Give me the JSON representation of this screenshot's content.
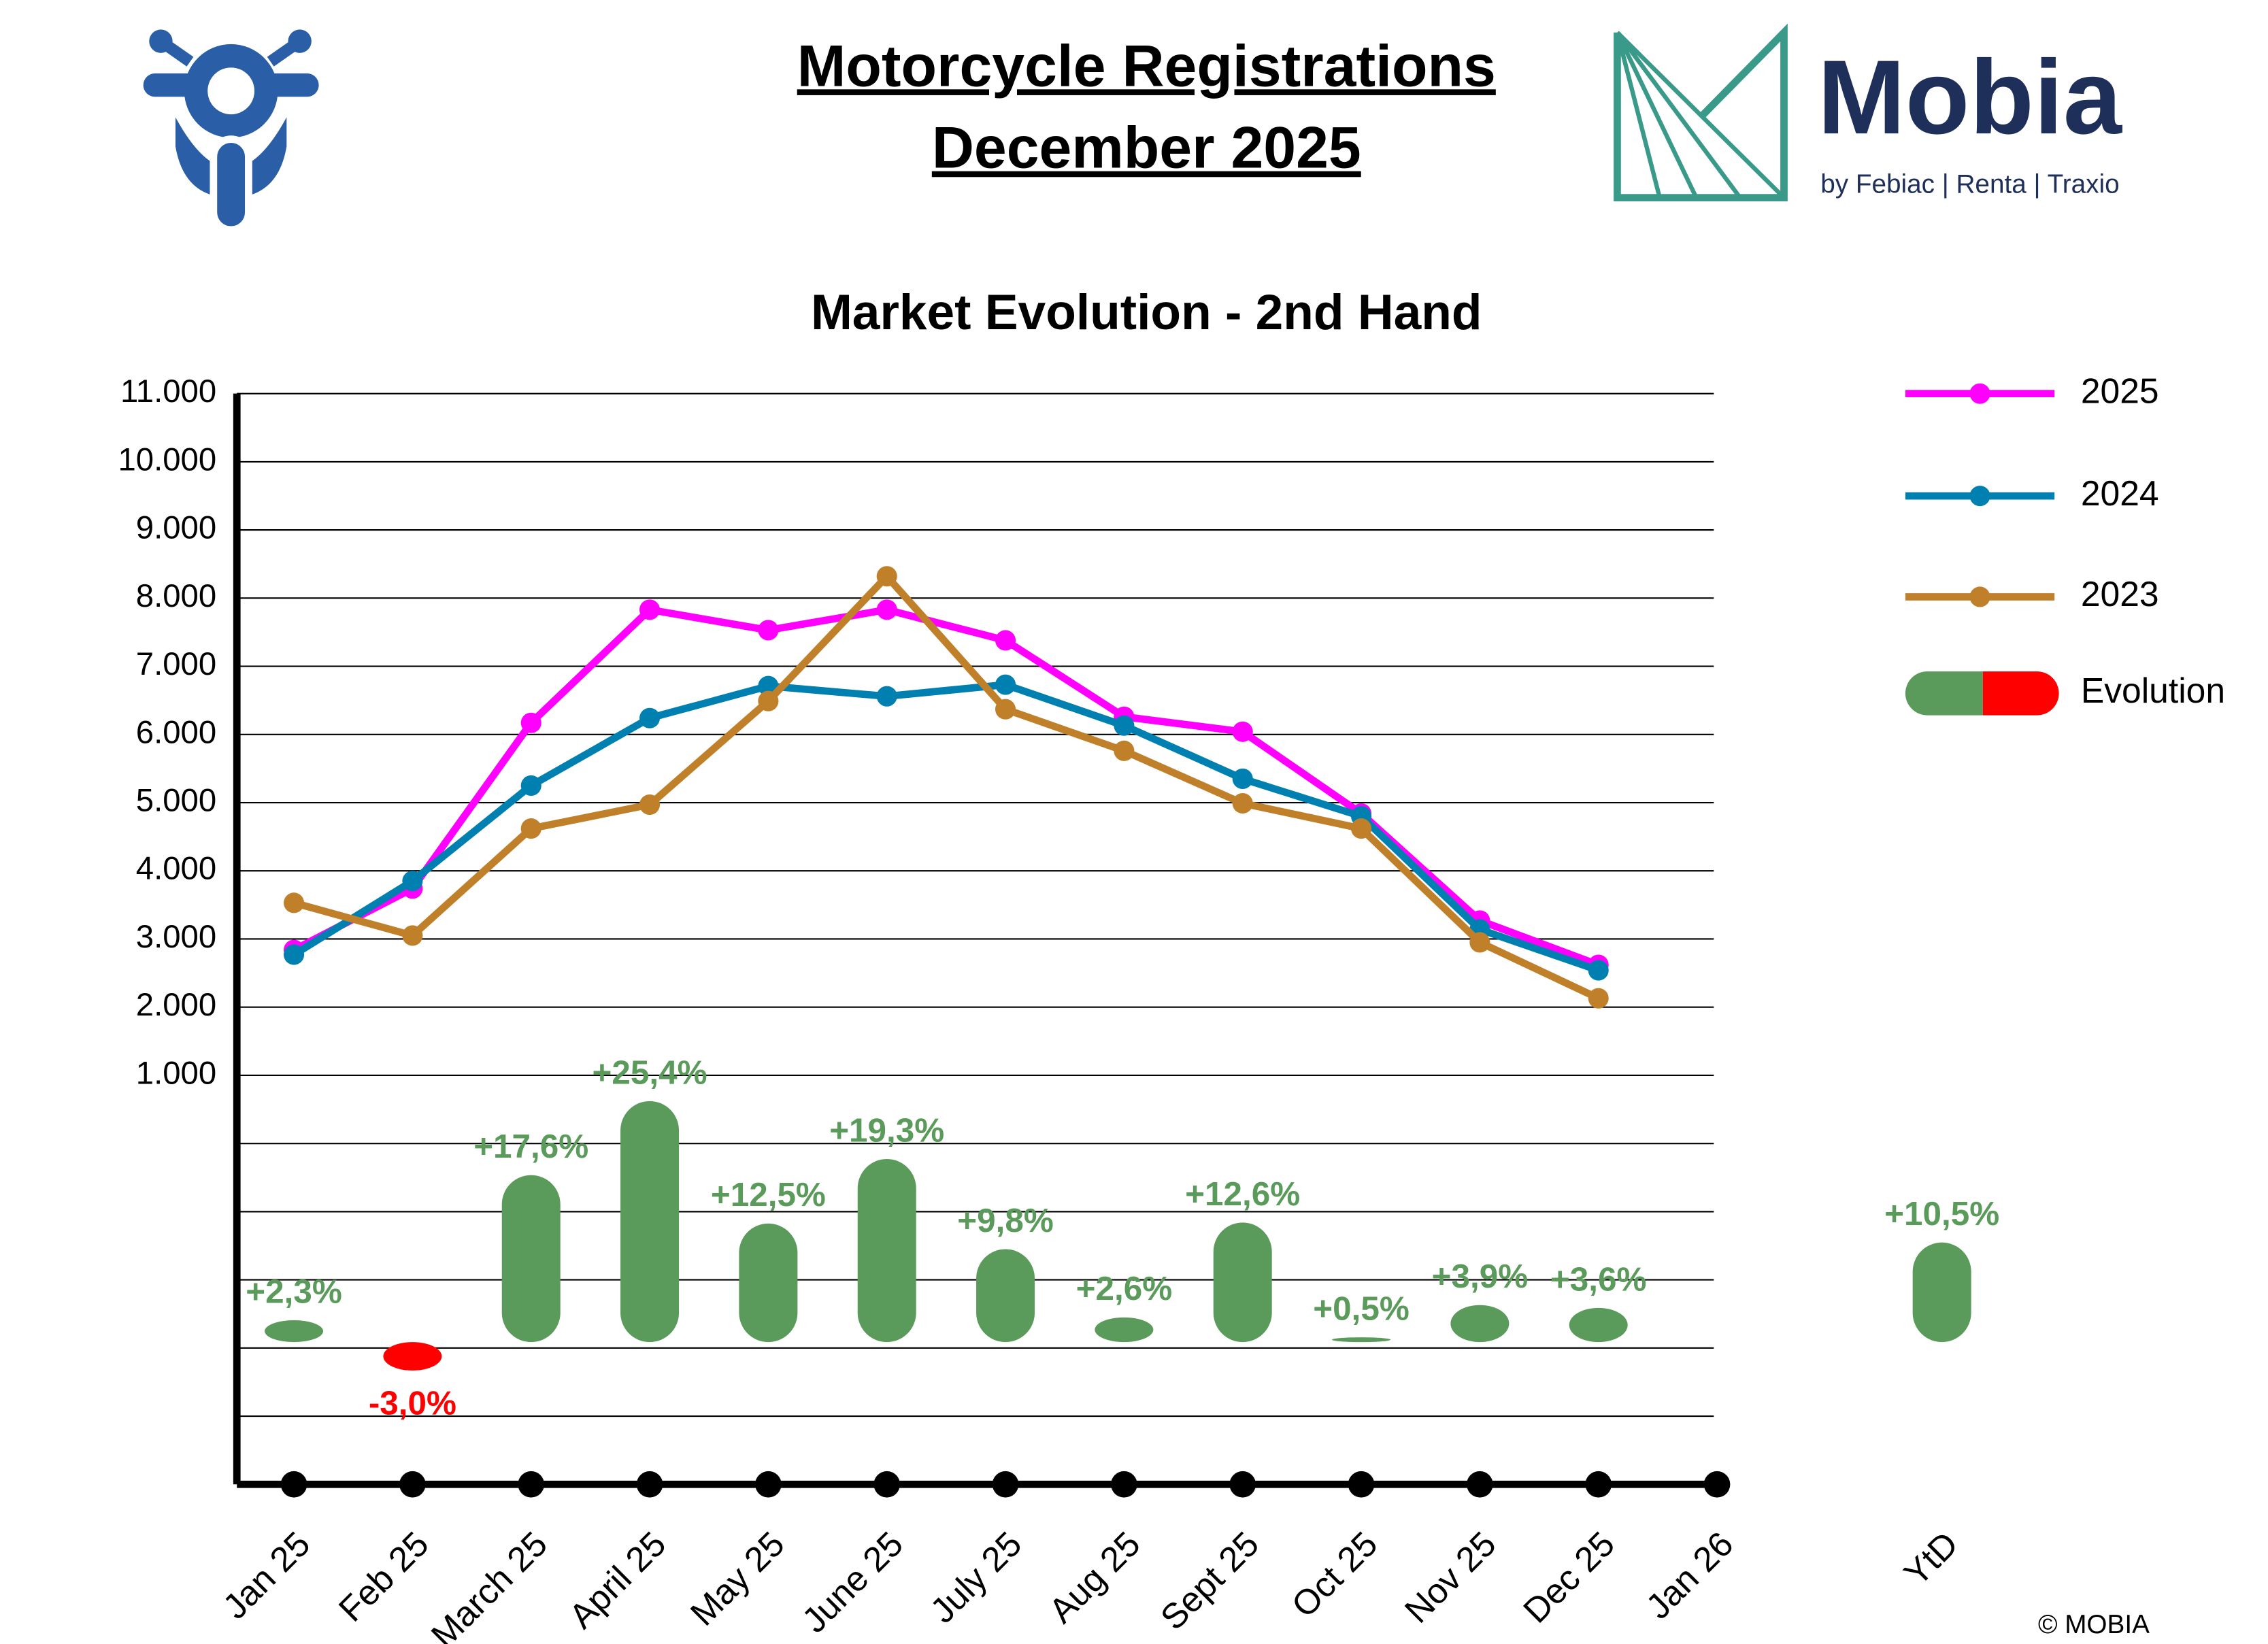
{
  "header": {
    "title_line1": "Motorcycle Registrations",
    "title_line2": "December 2025",
    "logo_name": "Mobia",
    "logo_tagline": "by Febiac | Renta | Traxio"
  },
  "footer": "© MOBIA",
  "chart_data": {
    "type": "line",
    "title": "Market Evolution - 2nd Hand",
    "categories": [
      "Jan 25",
      "Feb 25",
      "March 25",
      "April 25",
      "May 25",
      "June 25",
      "July 25",
      "Aug 25",
      "Sept 25",
      "Oct 25",
      "Nov 25",
      "Dec 25",
      "Jan 26"
    ],
    "ylim": [
      -5000,
      11000
    ],
    "yticks": [
      {
        "value": -4000,
        "label": null
      },
      {
        "value": -3000,
        "label": null
      },
      {
        "value": -2000,
        "label": null
      },
      {
        "value": -1000,
        "label": null
      },
      {
        "value": 0,
        "label": null
      },
      {
        "value": 1000,
        "label": "1.000"
      },
      {
        "value": 2000,
        "label": "2.000"
      },
      {
        "value": 3000,
        "label": "3.000"
      },
      {
        "value": 4000,
        "label": "4.000"
      },
      {
        "value": 5000,
        "label": "5.000"
      },
      {
        "value": 6000,
        "label": "6.000"
      },
      {
        "value": 7000,
        "label": "7.000"
      },
      {
        "value": 8000,
        "label": "8.000"
      },
      {
        "value": 9000,
        "label": "9.000"
      },
      {
        "value": 10000,
        "label": "10.000"
      },
      {
        "value": 11000,
        "label": "11.000"
      }
    ],
    "y2lim": [
      -15,
      100
    ],
    "grid": true,
    "legend": "right",
    "series": [
      {
        "name": "2025",
        "color": "#ff00ff",
        "values": [
          2840,
          3740,
          6170,
          7830,
          7530,
          7830,
          7380,
          6260,
          6040,
          4840,
          3270,
          2620,
          null
        ]
      },
      {
        "name": "2024",
        "color": "#0080b0",
        "values": [
          2770,
          3850,
          5250,
          6240,
          6710,
          6560,
          6730,
          6130,
          5350,
          4800,
          3140,
          2540,
          null
        ]
      },
      {
        "name": "2023",
        "color": "#c0802a",
        "values": [
          3530,
          3050,
          4620,
          4970,
          6490,
          8320,
          6370,
          5760,
          4990,
          4620,
          2950,
          2130,
          null
        ]
      },
      {
        "name": "Evolution",
        "type": "bar",
        "axis": "y2",
        "color": "#5a9a5a",
        "negative_color": "#ff0000",
        "values": [
          2.3,
          -3.0,
          17.6,
          25.4,
          12.5,
          19.3,
          9.8,
          2.6,
          12.6,
          0.5,
          3.9,
          3.6,
          null
        ],
        "value_labels": [
          "+2,3%",
          "-3,0%",
          "+17,6%",
          "+25,4%",
          "+12,5%",
          "+19,3%",
          "+9,8%",
          "+2,6%",
          "+12,6%",
          "+0,5%",
          "+3,9%",
          "+3,6%",
          null
        ]
      }
    ],
    "ytd": {
      "category": "YtD",
      "value": 10.5,
      "value_label": "+10,5%"
    }
  }
}
